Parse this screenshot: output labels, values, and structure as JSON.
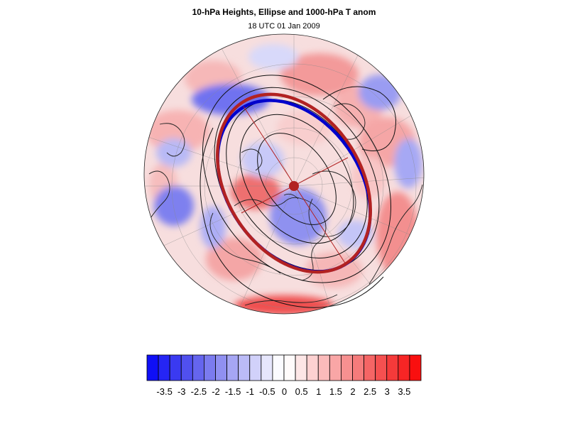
{
  "title": "10-hPa Heights, Ellipse and 1000-hPa T anom",
  "subtitle": "18 UTC 01 Jan 2009",
  "colorbar": {
    "colors": [
      "#0f0ff6",
      "#2525f4",
      "#3a3af1",
      "#5050ef",
      "#6565ee",
      "#7b7bef",
      "#9090f1",
      "#a6a6f4",
      "#bbbbf7",
      "#d1d1fa",
      "#e6e6fc",
      "#fbfbff",
      "#fffbfb",
      "#fde6e6",
      "#fdd1d1",
      "#fbbbbb",
      "#f9a6a6",
      "#f79090",
      "#f57b7b",
      "#f56565",
      "#f55050",
      "#f53a3a",
      "#f72525",
      "#f90f0f"
    ],
    "tick_labels": [
      "-3.5",
      "-3",
      "-2.5",
      "-2",
      "-1.5",
      "-1",
      "-0.5",
      "0",
      "0.5",
      "1",
      "1.5",
      "2",
      "2.5",
      "3",
      "3.5"
    ]
  },
  "map": {
    "projection": "polar stereographic (North Pole)",
    "fill_field": "1000-hPa T anom",
    "contour_field": "10-hPa Heights",
    "ellipse_colors": {
      "outer": "#b22222",
      "inner": "#0000cc",
      "center": "#b22222"
    }
  }
}
